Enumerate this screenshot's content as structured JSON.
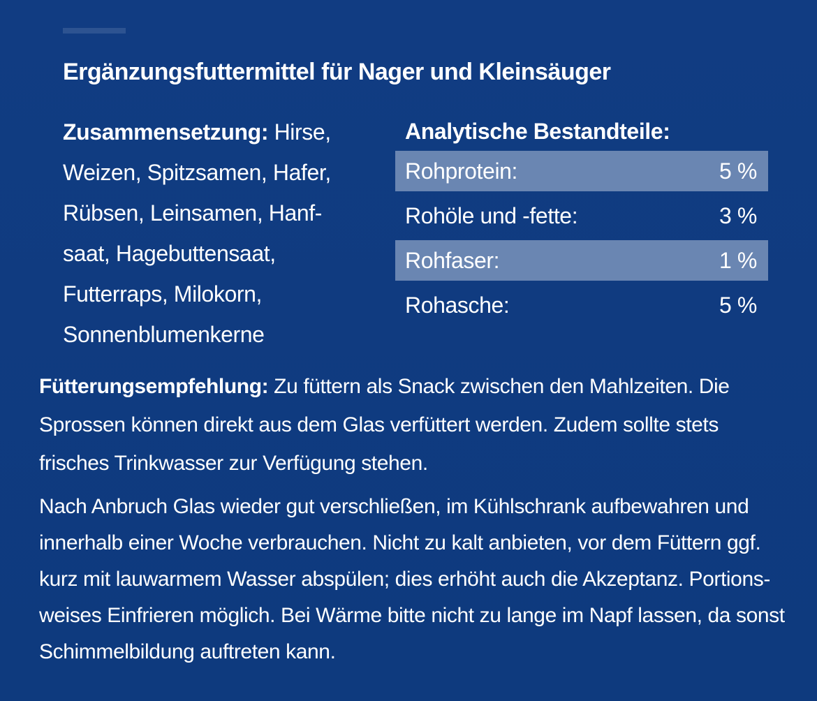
{
  "title": "Ergänzungsfuttermittel für Nager und Kleinsäuger",
  "composition": {
    "label": "Zusammensetzung:",
    "text": " Hirse, Weizen, Spitzsamen, Hafer, Rübsen, Leinsamen, Hanf-saat, Hagebuttensaat, Futterraps, Milokorn, Sonnenblumenkerne"
  },
  "analysis": {
    "heading": "Analytische Bestandteile:",
    "rows": [
      {
        "name": "Rohprotein:",
        "value": "5 %"
      },
      {
        "name": "Rohöle und -fette:",
        "value": "3 %"
      },
      {
        "name": "Rohfaser:",
        "value": "1 %"
      },
      {
        "name": "Rohasche:",
        "value": "5 %"
      }
    ]
  },
  "feeding": {
    "label": "Fütterungsempfehlung:",
    "text": " Zu füttern als Snack zwischen den Mahlzeiten. Die Sprossen können direkt aus dem Glas verfüttert werden. Zudem sollte stets frisches Trinkwasser zur Verfügung  stehen."
  },
  "storage": {
    "text": "Nach Anbruch Glas wieder gut verschließen, im Kühlschrank aufbewahren und innerhalb einer Woche verbrauchen. Nicht zu kalt anbieten, vor dem Füttern ggf. kurz mit lauwarmem Wasser abspülen; dies erhöht auch die Akzeptanz. Portions-weises Einfrieren möglich. Bei Wärme bitte nicht zu lange im Napf lassen, da sonst Schimmelbildung auftreten kann."
  },
  "colors": {
    "background": "#0f3a80",
    "row_shade": "#6a86b2",
    "text": "#ffffff"
  }
}
